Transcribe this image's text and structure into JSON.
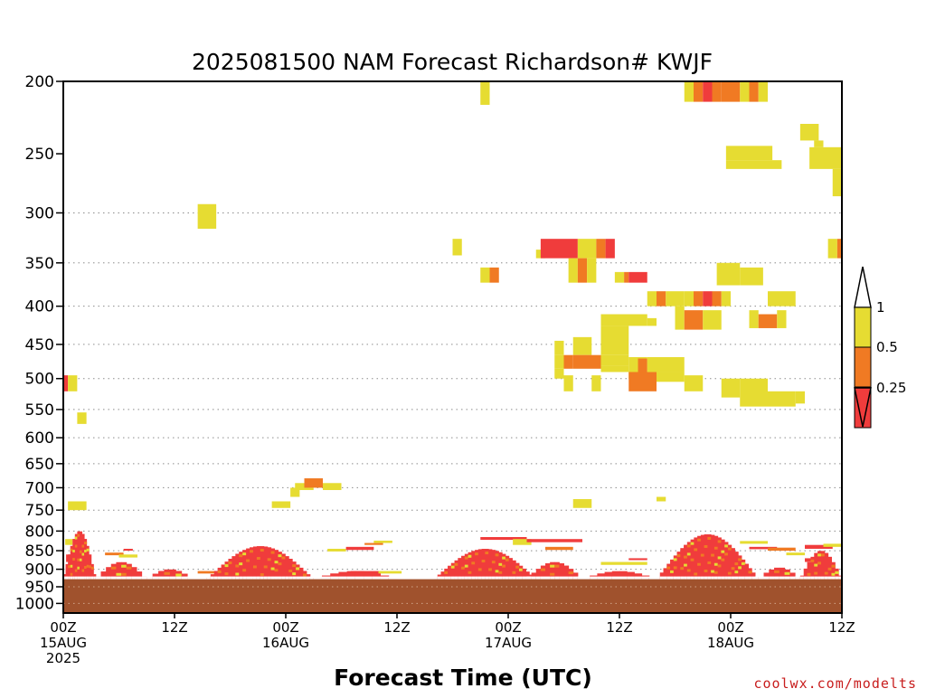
{
  "chart_data": {
    "type": "heatmap",
    "title": "2025081500 NAM Forecast Richardson# KWJF",
    "xlabel": "Forecast Time (UTC)",
    "credit": "coolwx.com/modelts",
    "y_scale": "log",
    "y_inverted": true,
    "y_range": [
      1030,
      200
    ],
    "y_ticks": [
      200,
      250,
      300,
      350,
      400,
      450,
      500,
      550,
      600,
      650,
      700,
      750,
      800,
      850,
      900,
      950,
      1000
    ],
    "y_tick_labels": [
      "200",
      "250",
      "300",
      "350",
      "400",
      "450",
      "500",
      "550",
      "600",
      "650",
      "700",
      "750",
      "800",
      "850",
      "900",
      "950",
      "1000"
    ],
    "y_dotted_grid": [
      300,
      350,
      400,
      450,
      500,
      550,
      600,
      650,
      700,
      750,
      800,
      850,
      900,
      950,
      1000
    ],
    "x_range_hours": [
      0,
      84
    ],
    "x_ticks": [
      {
        "hour": 0,
        "line1": "00Z",
        "line2": "15AUG",
        "line3": "2025"
      },
      {
        "hour": 12,
        "line1": "12Z",
        "line2": "",
        "line3": ""
      },
      {
        "hour": 24,
        "line1": "00Z",
        "line2": "16AUG",
        "line3": ""
      },
      {
        "hour": 36,
        "line1": "12Z",
        "line2": "",
        "line3": ""
      },
      {
        "hour": 48,
        "line1": "00Z",
        "line2": "17AUG",
        "line3": ""
      },
      {
        "hour": 60,
        "line1": "12Z",
        "line2": "",
        "line3": ""
      },
      {
        "hour": 72,
        "line1": "00Z",
        "line2": "18AUG",
        "line3": ""
      },
      {
        "hour": 84,
        "line1": "12Z",
        "line2": "",
        "line3": ""
      }
    ],
    "colors": {
      "c1": "#e6dc32",
      "c2": "#f07a23",
      "c3": "#f03c3c",
      "terrain": "#a0522d"
    },
    "terrain_top_hpa": 928,
    "legend": {
      "labels": [
        "1",
        "0.5",
        "0.25"
      ],
      "bins": [
        {
          "range": "0.5-1",
          "color": "c1"
        },
        {
          "range": "0.25-0.5",
          "color": "c2"
        },
        {
          "range": "<0.25",
          "color": "c3"
        }
      ]
    },
    "cells": [
      [
        45,
        46,
        200,
        210,
        "c1"
      ],
      [
        45,
        46,
        210,
        215,
        "c1"
      ],
      [
        67,
        68,
        200,
        213,
        "c1"
      ],
      [
        68,
        69,
        200,
        213,
        "c2"
      ],
      [
        69,
        70,
        200,
        213,
        "c3"
      ],
      [
        70,
        71,
        200,
        213,
        "c2"
      ],
      [
        71,
        73,
        200,
        213,
        "c2"
      ],
      [
        73,
        74,
        200,
        213,
        "c1"
      ],
      [
        74,
        75,
        200,
        213,
        "c2"
      ],
      [
        75,
        76,
        200,
        213,
        "c1"
      ],
      [
        79.5,
        81.5,
        228,
        240,
        "c1"
      ],
      [
        81,
        82,
        240,
        245,
        "c1"
      ],
      [
        71.5,
        76.5,
        244,
        255,
        "c1"
      ],
      [
        71.5,
        77.5,
        255,
        262,
        "c1"
      ],
      [
        80.5,
        84,
        245,
        262,
        "c1"
      ],
      [
        83,
        84,
        262,
        285,
        "c1"
      ],
      [
        14.5,
        16.5,
        292,
        315,
        "c1"
      ],
      [
        42,
        43,
        325,
        342,
        "c1"
      ],
      [
        51,
        52,
        336,
        345,
        "c1"
      ],
      [
        51.5,
        55.5,
        325,
        345,
        "c3"
      ],
      [
        55.5,
        57.5,
        325,
        345,
        "c1"
      ],
      [
        57.5,
        58.5,
        325,
        345,
        "c2"
      ],
      [
        58.5,
        59.5,
        325,
        345,
        "c3"
      ],
      [
        82.5,
        83.5,
        325,
        345,
        "c1"
      ],
      [
        83.5,
        84,
        325,
        345,
        "c2"
      ],
      [
        45,
        46,
        355,
        372,
        "c1"
      ],
      [
        46,
        47,
        355,
        372,
        "c2"
      ],
      [
        54.5,
        55.5,
        345,
        372,
        "c1"
      ],
      [
        55.5,
        56.5,
        345,
        372,
        "c2"
      ],
      [
        56.5,
        57.5,
        345,
        372,
        "c1"
      ],
      [
        59.5,
        60.5,
        360,
        372,
        "c1"
      ],
      [
        60.5,
        61,
        360,
        372,
        "c2"
      ],
      [
        61,
        63,
        360,
        372,
        "c3"
      ],
      [
        70.5,
        73,
        350,
        375,
        "c1"
      ],
      [
        73,
        75.5,
        355,
        375,
        "c1"
      ],
      [
        63,
        64,
        382,
        400,
        "c1"
      ],
      [
        64,
        65,
        382,
        400,
        "c2"
      ],
      [
        65,
        66,
        382,
        400,
        "c1"
      ],
      [
        66,
        67,
        382,
        400,
        "c1"
      ],
      [
        67,
        68,
        382,
        400,
        "c1"
      ],
      [
        68,
        69,
        382,
        400,
        "c2"
      ],
      [
        69,
        70,
        382,
        400,
        "c3"
      ],
      [
        70,
        71,
        382,
        400,
        "c2"
      ],
      [
        71,
        72,
        382,
        400,
        "c1"
      ],
      [
        76,
        79,
        382,
        400,
        "c1"
      ],
      [
        58,
        62,
        410,
        425,
        "c1"
      ],
      [
        62,
        63,
        410,
        425,
        "c1"
      ],
      [
        63,
        64,
        415,
        425,
        "c1"
      ],
      [
        66,
        67,
        400,
        430,
        "c1"
      ],
      [
        67,
        69,
        405,
        430,
        "c2"
      ],
      [
        69,
        71,
        405,
        430,
        "c1"
      ],
      [
        74,
        75,
        405,
        428,
        "c1"
      ],
      [
        75,
        77,
        410,
        428,
        "c2"
      ],
      [
        77,
        78,
        405,
        428,
        "c1"
      ],
      [
        58,
        61,
        425,
        465,
        "c1"
      ],
      [
        53,
        54,
        445,
        465,
        "c1"
      ],
      [
        55,
        57,
        440,
        465,
        "c1"
      ],
      [
        58,
        61,
        465,
        480,
        "c1"
      ],
      [
        53,
        54,
        465,
        485,
        "c1"
      ],
      [
        54,
        55,
        465,
        485,
        "c2"
      ],
      [
        55,
        58,
        465,
        485,
        "c2"
      ],
      [
        58,
        61,
        480,
        490,
        "c1"
      ],
      [
        61,
        63,
        468,
        500,
        "c1"
      ],
      [
        62,
        63,
        470,
        500,
        "c2"
      ],
      [
        63,
        67,
        468,
        490,
        "c1"
      ],
      [
        53,
        54,
        485,
        500,
        "c1"
      ],
      [
        54,
        55,
        495,
        520,
        "c1"
      ],
      [
        57,
        58,
        495,
        520,
        "c1"
      ],
      [
        61,
        64,
        490,
        520,
        "c2"
      ],
      [
        64,
        67,
        490,
        505,
        "c1"
      ],
      [
        67,
        69,
        495,
        520,
        "c1"
      ],
      [
        71,
        73,
        500,
        530,
        "c1"
      ],
      [
        73,
        76,
        500,
        545,
        "c1"
      ],
      [
        76,
        79,
        520,
        545,
        "c1"
      ],
      [
        79,
        80,
        520,
        540,
        "c1"
      ],
      [
        0,
        0.5,
        495,
        520,
        "c3"
      ],
      [
        0.5,
        1.5,
        495,
        520,
        "c1"
      ],
      [
        1.5,
        2.5,
        555,
        575,
        "c1"
      ],
      [
        0.5,
        2.5,
        730,
        750,
        "c1"
      ],
      [
        22.5,
        24.5,
        730,
        745,
        "c1"
      ],
      [
        24.5,
        25.5,
        700,
        720,
        "c1"
      ],
      [
        25,
        27,
        690,
        705,
        "c1"
      ],
      [
        26,
        28,
        680,
        700,
        "c2"
      ],
      [
        28,
        30,
        690,
        705,
        "c1"
      ],
      [
        55,
        57,
        725,
        745,
        "c1"
      ],
      [
        64,
        65,
        720,
        730,
        "c1"
      ]
    ],
    "bumps": [
      {
        "h0": 0,
        "h1": 3.5,
        "top": 800,
        "segs": 14
      },
      {
        "h0": 3.5,
        "h1": 9,
        "top": 880,
        "segs": 10
      },
      {
        "h0": 9,
        "h1": 14,
        "top": 900,
        "segs": 8
      },
      {
        "h0": 15.5,
        "h1": 27,
        "top": 838,
        "segs": 30
      },
      {
        "h0": 27,
        "h1": 36,
        "top": 905,
        "segs": 10
      },
      {
        "h0": 40,
        "h1": 51,
        "top": 845,
        "segs": 30
      },
      {
        "h0": 50,
        "h1": 56,
        "top": 880,
        "segs": 12
      },
      {
        "h0": 56,
        "h1": 64,
        "top": 905,
        "segs": 10
      },
      {
        "h0": 64,
        "h1": 75,
        "top": 808,
        "segs": 30
      },
      {
        "h0": 75,
        "h1": 79.5,
        "top": 895,
        "segs": 8
      },
      {
        "h0": 79.5,
        "h1": 84,
        "top": 850,
        "segs": 12
      }
    ],
    "low_strips": [
      [
        0.2,
        1,
        820,
        835
      ],
      [
        0.3,
        1.5,
        860,
        880
      ],
      [
        4.5,
        6.5,
        855,
        862
      ],
      [
        6,
        8,
        860,
        868
      ],
      [
        6.5,
        7.5,
        845,
        850
      ],
      [
        28.5,
        30.5,
        845,
        852
      ],
      [
        30.5,
        33.5,
        840,
        848
      ],
      [
        32.5,
        34.5,
        830,
        835
      ],
      [
        33.5,
        35.5,
        824,
        830
      ],
      [
        45,
        50,
        815,
        822
      ],
      [
        48.5,
        50.5,
        820,
        835
      ],
      [
        50,
        56,
        820,
        828
      ],
      [
        52,
        55,
        840,
        848
      ],
      [
        58,
        63,
        880,
        888
      ],
      [
        61,
        63,
        870,
        875
      ],
      [
        73,
        76,
        825,
        832
      ],
      [
        74,
        77,
        840,
        846
      ],
      [
        76,
        79,
        842,
        850
      ],
      [
        78,
        80,
        855,
        862
      ],
      [
        80,
        83,
        835,
        845
      ],
      [
        82,
        84,
        832,
        840
      ],
      [
        80,
        82,
        870,
        880
      ],
      [
        14.5,
        16.5,
        905,
        912
      ],
      [
        23.5,
        25.5,
        905,
        910
      ],
      [
        31,
        34,
        905,
        915
      ],
      [
        34,
        36.5,
        905,
        912
      ]
    ]
  }
}
